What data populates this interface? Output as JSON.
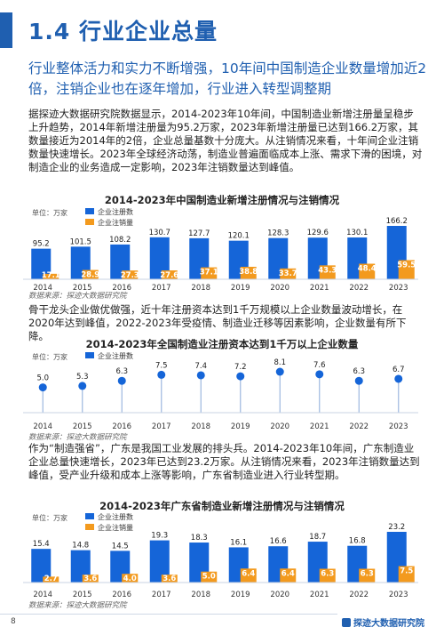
{
  "page": {
    "section_title": "1.4 行业企业总量",
    "headline": "行业整体活力和实力不断增强，10年间中国制造企业数量增加近2倍，注销企业也在逐年增加，行业进入转型调整期",
    "para1": "据探迹大数据研究院数据显示，2014-2023年10年间，中国制造业新增注册量呈稳步上升趋势，2014年新增注册量为95.2万家，2023年新增注册量已达到166.2万家，其数量接近为2014年的2倍，企业总量基数十分庞大。从注销情况来看，十年间企业注销数量快速增长。2023年全球经济动荡，制造业普遍面临成本上涨、需求下滑的困境，对制造企业的业务造成一定影响，2023年注销数量达到峰值。",
    "para2": "骨干龙头企业做优做强，近十年注册资本达到1千万规模以上企业数量波动增长，在2020年达到峰值，2022-2023年受疫情、制造业迁移等因素影响，企业数量有所下降。",
    "para3": "作为“制造强省”，广东是我国工业发展的排头兵。2014-2023年10年间，广东制造业企业总量快速增长，2023年已达到23.2万家。从注销情况来看，2023年注销数量达到峰值，受产业升级和成本上涨等影响，广东省制造业进入行业转型期。",
    "source": "数据来源：探迹大数据研究院",
    "page_number": "8",
    "brand": "探迹大数据研究院"
  },
  "colors": {
    "blue": "#1f5fb0",
    "orange": "#f39a1e",
    "bar_blue": "#1565d8"
  },
  "chart_data": [
    {
      "type": "bar",
      "title": "2014-2023年中国制造业新增注册情况与注销情况",
      "unit": "单位：万家",
      "categories": [
        "2014",
        "2015",
        "2016",
        "2017",
        "2018",
        "2019",
        "2020",
        "2021",
        "2022",
        "2023"
      ],
      "series": [
        {
          "name": "企业注册数",
          "values": [
            95.2,
            101.5,
            108.2,
            130.7,
            127.7,
            120.1,
            128.3,
            129.6,
            130.1,
            166.2
          ]
        },
        {
          "name": "企业注销量",
          "values": [
            17.1,
            28.9,
            27.3,
            27.6,
            37.1,
            38.8,
            33.7,
            43.3,
            48.4,
            59.5
          ]
        }
      ]
    },
    {
      "type": "bar",
      "title": "2014-2023年全国制造业注册资本达到1千万以上企业数量",
      "unit": "单位：万家",
      "categories": [
        "2014",
        "2015",
        "2016",
        "2017",
        "2018",
        "2019",
        "2020",
        "2021",
        "2022",
        "2023"
      ],
      "series": [
        {
          "name": "企业注册数",
          "values": [
            5.0,
            5.3,
            6.3,
            7.5,
            7.4,
            7.2,
            8.1,
            7.6,
            6.3,
            6.7
          ]
        }
      ]
    },
    {
      "type": "bar",
      "title": "2014-2023年广东省制造业新增注册情况与注销情况",
      "unit": "单位：万家",
      "categories": [
        "2014",
        "2015",
        "2016",
        "2017",
        "2018",
        "2019",
        "2020",
        "2021",
        "2022",
        "2023"
      ],
      "series": [
        {
          "name": "企业注册数",
          "values": [
            15.4,
            14.8,
            14.5,
            19.3,
            18.3,
            16.1,
            16.6,
            18.7,
            16.8,
            23.2
          ]
        },
        {
          "name": "企业注销量",
          "values": [
            2.7,
            3.6,
            4.0,
            3.6,
            5.0,
            6.4,
            6.4,
            6.3,
            6.3,
            7.5
          ]
        }
      ]
    }
  ]
}
